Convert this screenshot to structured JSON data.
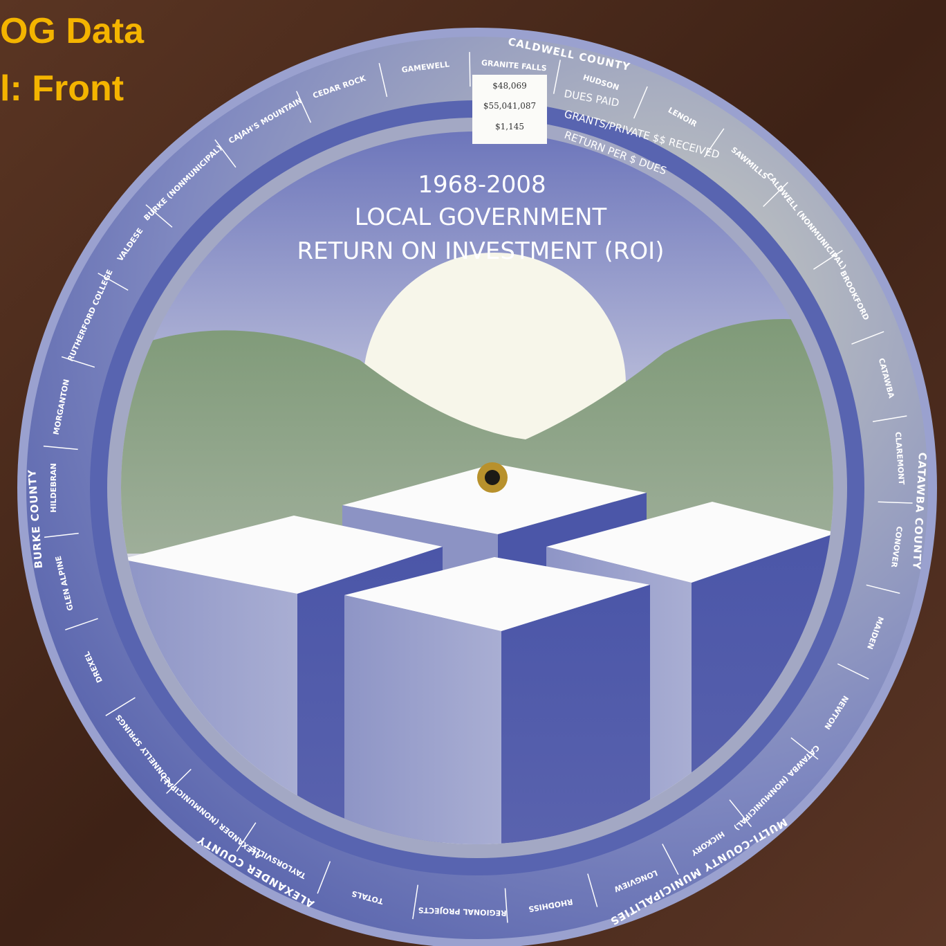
{
  "header": {
    "lines": [
      "OG Data",
      "l: Front"
    ]
  },
  "window": {
    "values": [
      "$48,069",
      "$55,041,087",
      "$1,145"
    ],
    "labels": [
      "DUES PAID",
      "GRANTS/PRIVATE $$ RECEIVED",
      "RETURN PER $ DUES"
    ]
  },
  "center": {
    "lines": [
      "1968-2008",
      "LOCAL GOVERNMENT",
      "RETURN ON INVESTMENT (ROI)"
    ]
  },
  "groups": [
    "CALDWELL COUNTY",
    "CATAWBA COUNTY",
    "MULTI-COUNTY MUNICIPALITIES",
    "ALEXANDER COUNTY",
    "BURKE COUNTY"
  ],
  "places": [
    "GRANITE FALLS",
    "HUDSON",
    "LENOIR",
    "SAWMILLS",
    "CALDWELL (NONMUNICIPAL)",
    "BROOKFORD",
    "CATAWBA",
    "CLAREMONT",
    "CONOVER",
    "MAIDEN",
    "NEWTON",
    "CATAWBA (NONMUNICIPAL)",
    "HICKORY",
    "LONGVIEW",
    "RHODHISS",
    "REGIONAL PROJECTS",
    "TOTALS",
    "TAYLORSVILLE",
    "ALEXANDER (NONMUNICIPAL)",
    "CONNELLY SPRINGS",
    "DREXEL",
    "GLEN ALPINE",
    "HILDEBRAN",
    "MORGANTON",
    "RUTHERFORD COLLEGE",
    "VALDESE",
    "BURKE (NONMUNICIPAL)",
    "CAJAH'S MOUNTAIN",
    "CEDAR ROCK",
    "GAMEWELL"
  ]
}
